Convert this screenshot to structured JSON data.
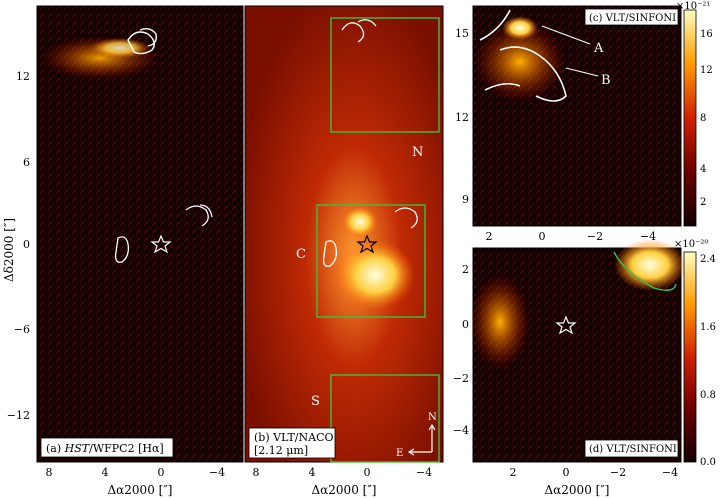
{
  "panels": {
    "a": {
      "label_prefix": "(a) ",
      "label_em": "HST",
      "label_rest": "/WFPC2 [Hα]"
    },
    "b": {
      "label_line1": "(b) VLT/NACO",
      "label_line2": "[2.12 μm]",
      "region_N": "N",
      "region_C": "C",
      "region_S": "S",
      "compass_N": "N",
      "compass_E": "E"
    },
    "c": {
      "label": "(c) VLT/SINFONI",
      "marker_A": "A",
      "marker_B": "B"
    },
    "d": {
      "label": "(d) VLT/SINFONI"
    }
  },
  "axes": {
    "left_ylabel": "Δδ2000 [″]",
    "xlabel_a": "Δα2000 [″]",
    "xlabel_b": "Δα2000 [″]",
    "xlabel_d": "Δα2000 [″]",
    "left_y_ticks": [
      "12",
      "6",
      "0",
      "−6",
      "−12"
    ],
    "ab_x_ticks": [
      "8",
      "4",
      "0",
      "−4"
    ],
    "c_y_ticks": [
      "15",
      "12",
      "9"
    ],
    "c_x_ticks": [
      "2",
      "0",
      "−2",
      "−4"
    ],
    "d_y_ticks": [
      "2",
      "0",
      "−2",
      "−4"
    ],
    "d_x_ticks": [
      "2",
      "0",
      "−2",
      "−4"
    ]
  },
  "colorbars": {
    "c": {
      "scale": "×10⁻²¹",
      "ticks": [
        "16",
        "12",
        "8",
        "4",
        "2"
      ]
    },
    "d": {
      "scale": "×10⁻²⁰",
      "ticks": [
        "2.4",
        "1.6",
        "0.8",
        "0.0"
      ]
    }
  },
  "colors": {
    "box": "#3fbf3f",
    "contour": "#ffffff",
    "background": "#120000"
  }
}
